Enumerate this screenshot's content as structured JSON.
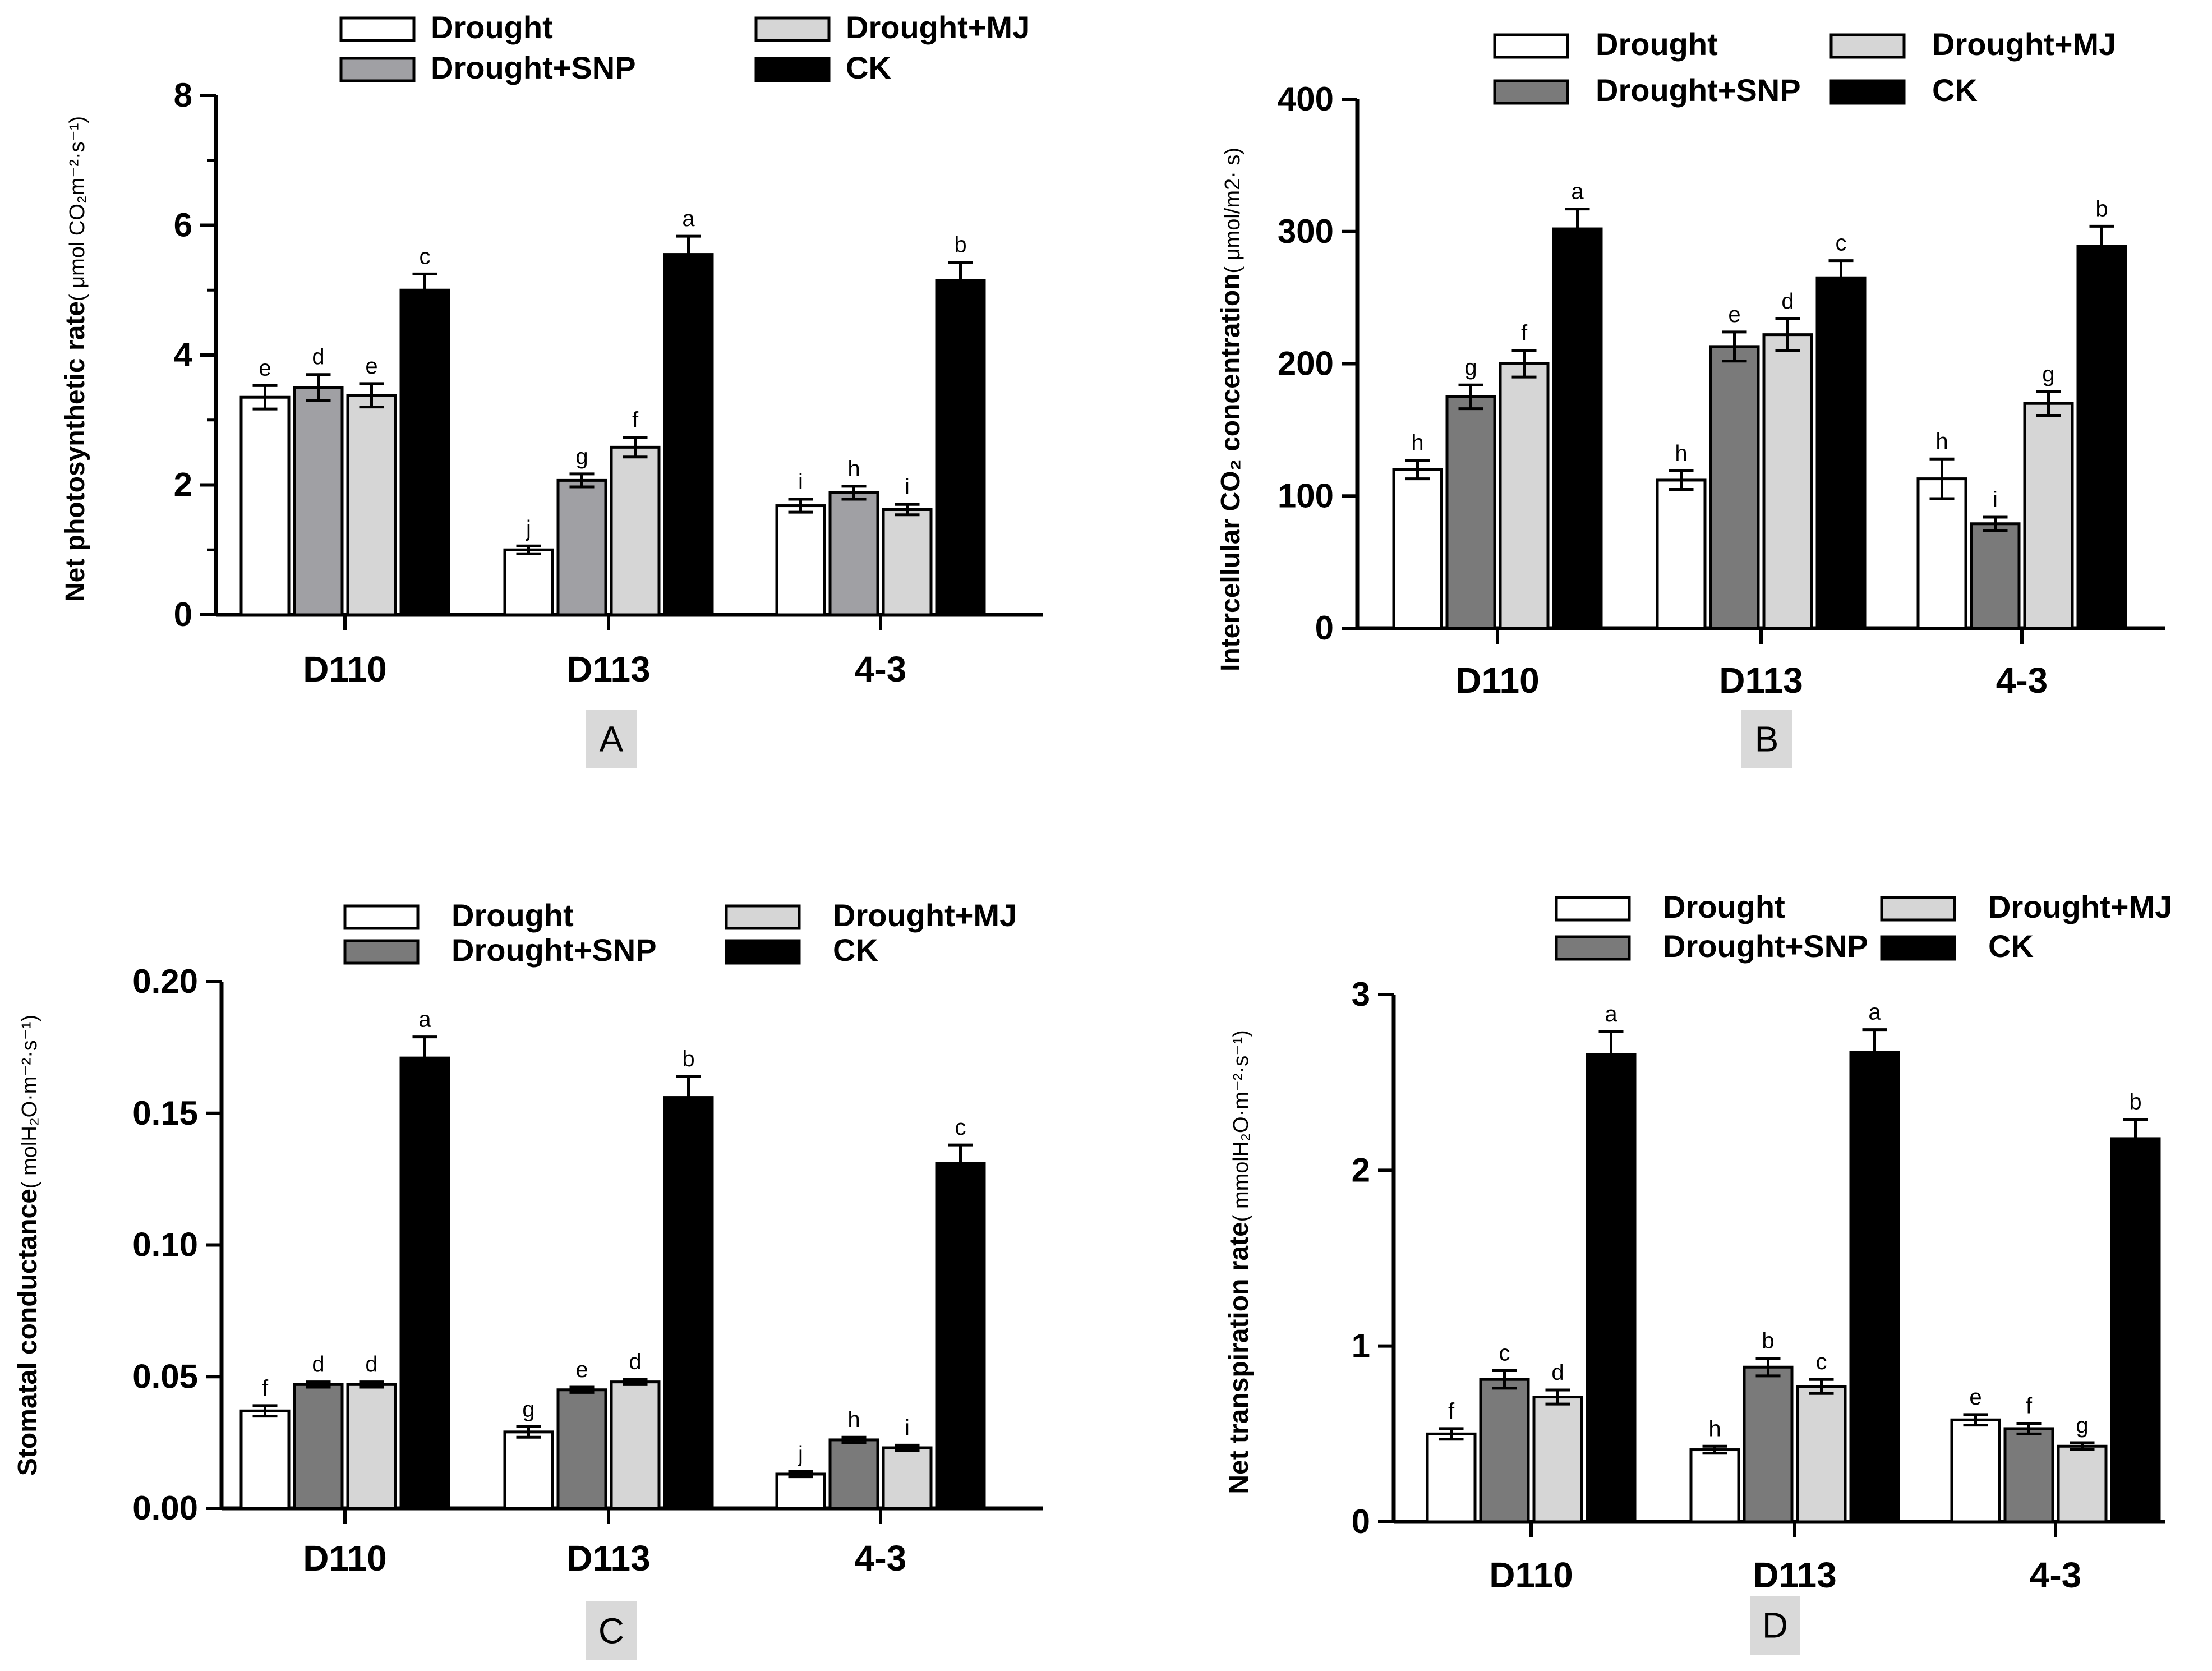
{
  "series_colors": {
    "Drought": "#ffffff",
    "Drought+SNP": "#a0a0a4",
    "Drought+SNP_dark": "#7a7a7a",
    "Drought+MJ": "#d6d6d6",
    "CK": "#000000"
  },
  "chart_data": [
    {
      "type": "bar",
      "panel": "A",
      "ylabel_main": "Net photosynthetic rate",
      "ylabel_unit": "( μmol CO₂m⁻²·s⁻¹)",
      "ylim": [
        0,
        8
      ],
      "yticks": [
        0,
        2,
        4,
        6,
        8
      ],
      "categories": [
        "D110",
        "D113",
        "4-3"
      ],
      "series": [
        {
          "name": "Drought",
          "values": [
            3.35,
            1.0,
            1.68
          ],
          "errors": [
            0.18,
            0.06,
            0.1
          ],
          "letters": [
            "e",
            "j",
            "i"
          ]
        },
        {
          "name": "Drought+SNP",
          "values": [
            3.5,
            2.07,
            1.88
          ],
          "errors": [
            0.2,
            0.1,
            0.1
          ],
          "letters": [
            "d",
            "g",
            "h"
          ]
        },
        {
          "name": "Drought+MJ",
          "values": [
            3.38,
            2.58,
            1.62
          ],
          "errors": [
            0.18,
            0.15,
            0.08
          ],
          "letters": [
            "e",
            "f",
            "i"
          ]
        },
        {
          "name": "CK",
          "values": [
            5.0,
            5.55,
            5.15
          ],
          "errors": [
            0.25,
            0.28,
            0.28
          ],
          "letters": [
            "c",
            "a",
            "b"
          ]
        }
      ]
    },
    {
      "type": "bar",
      "panel": "B",
      "ylabel_main": "Intercellular CO₂ concentration",
      "ylabel_unit": "( μmol/m2· s)",
      "ylim": [
        0,
        400
      ],
      "yticks": [
        0,
        100,
        200,
        300,
        400
      ],
      "categories": [
        "D110",
        "D113",
        "4-3"
      ],
      "series": [
        {
          "name": "Drought",
          "values": [
            120,
            112,
            113
          ],
          "errors": [
            7,
            7,
            15
          ],
          "letters": [
            "h",
            "h",
            "h"
          ]
        },
        {
          "name": "Drought+SNP",
          "values": [
            175,
            213,
            79
          ],
          "errors": [
            9,
            11,
            5
          ],
          "letters": [
            "g",
            "e",
            "i"
          ]
        },
        {
          "name": "Drought+MJ",
          "values": [
            200,
            222,
            170
          ],
          "errors": [
            10,
            12,
            9
          ],
          "letters": [
            "f",
            "d",
            "g"
          ]
        },
        {
          "name": "CK",
          "values": [
            302,
            265,
            289
          ],
          "errors": [
            15,
            13,
            15
          ],
          "letters": [
            "a",
            "c",
            "b"
          ]
        }
      ]
    },
    {
      "type": "bar",
      "panel": "C",
      "ylabel_main": "Stomatal conductance",
      "ylabel_unit": "( molH₂O·m⁻²·s⁻¹)",
      "ylim": [
        0,
        0.2
      ],
      "yticks": [
        "0.00",
        "0.05",
        "0.10",
        "0.15",
        "0.20"
      ],
      "categories": [
        "D110",
        "D113",
        "4-3"
      ],
      "series": [
        {
          "name": "Drought",
          "values": [
            0.037,
            0.029,
            0.013
          ],
          "errors": [
            0.002,
            0.002,
            0.001
          ],
          "letters": [
            "f",
            "g",
            "j"
          ]
        },
        {
          "name": "Drought+SNP",
          "values": [
            0.047,
            0.045,
            0.026
          ],
          "errors": [
            0.001,
            0.001,
            0.001
          ],
          "letters": [
            "d",
            "e",
            "h"
          ]
        },
        {
          "name": "Drought+MJ",
          "values": [
            0.047,
            0.048,
            0.023
          ],
          "errors": [
            0.001,
            0.001,
            0.001
          ],
          "letters": [
            "d",
            "d",
            "i"
          ]
        },
        {
          "name": "CK",
          "values": [
            0.171,
            0.156,
            0.131
          ],
          "errors": [
            0.008,
            0.008,
            0.007
          ],
          "letters": [
            "a",
            "b",
            "c"
          ]
        }
      ]
    },
    {
      "type": "bar",
      "panel": "D",
      "ylabel_main": "Net transpiration rate",
      "ylabel_unit": "( mmolH₂O·m⁻²·s⁻¹)",
      "ylim": [
        0,
        3
      ],
      "yticks": [
        0,
        1,
        2,
        3
      ],
      "categories": [
        "D110",
        "D113",
        "4-3"
      ],
      "series": [
        {
          "name": "Drought",
          "values": [
            0.5,
            0.41,
            0.58
          ],
          "errors": [
            0.03,
            0.02,
            0.03
          ],
          "letters": [
            "f",
            "h",
            "e"
          ]
        },
        {
          "name": "Drought+SNP",
          "values": [
            0.81,
            0.88,
            0.53
          ],
          "errors": [
            0.05,
            0.05,
            0.03
          ],
          "letters": [
            "c",
            "b",
            "f"
          ]
        },
        {
          "name": "Drought+MJ",
          "values": [
            0.71,
            0.77,
            0.43
          ],
          "errors": [
            0.04,
            0.04,
            0.02
          ],
          "letters": [
            "d",
            "c",
            "g"
          ]
        },
        {
          "name": "CK",
          "values": [
            2.66,
            2.67,
            2.18
          ],
          "errors": [
            0.13,
            0.13,
            0.11
          ],
          "letters": [
            "a",
            "a",
            "b"
          ]
        }
      ]
    }
  ]
}
